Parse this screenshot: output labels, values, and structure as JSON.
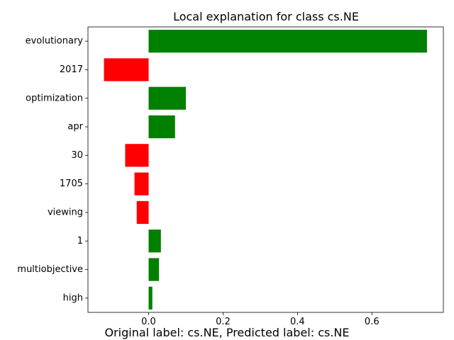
{
  "chart_data": {
    "type": "bar",
    "orientation": "horizontal",
    "title": "Local explanation for class cs.NE",
    "xlabel": "",
    "ylabel": "",
    "categories": [
      "evolutionary",
      "2017",
      "optimization",
      "apr",
      "30",
      "1705",
      "viewing",
      "1",
      "multiobjective",
      "high"
    ],
    "values": [
      0.748,
      -0.12,
      0.1,
      0.071,
      -0.063,
      -0.038,
      -0.032,
      0.033,
      0.028,
      0.01
    ],
    "xlim": [
      -0.163,
      0.792
    ],
    "xticks": [
      0.0,
      0.2,
      0.4,
      0.6
    ],
    "xtick_labels": [
      "0.0",
      "0.2",
      "0.4",
      "0.6"
    ],
    "grid": false,
    "legend": "none",
    "colors": {
      "positive": "#008000",
      "negative": "#ff0000"
    }
  },
  "caption": "Original label: cs.NE, Predicted label: cs.NE"
}
